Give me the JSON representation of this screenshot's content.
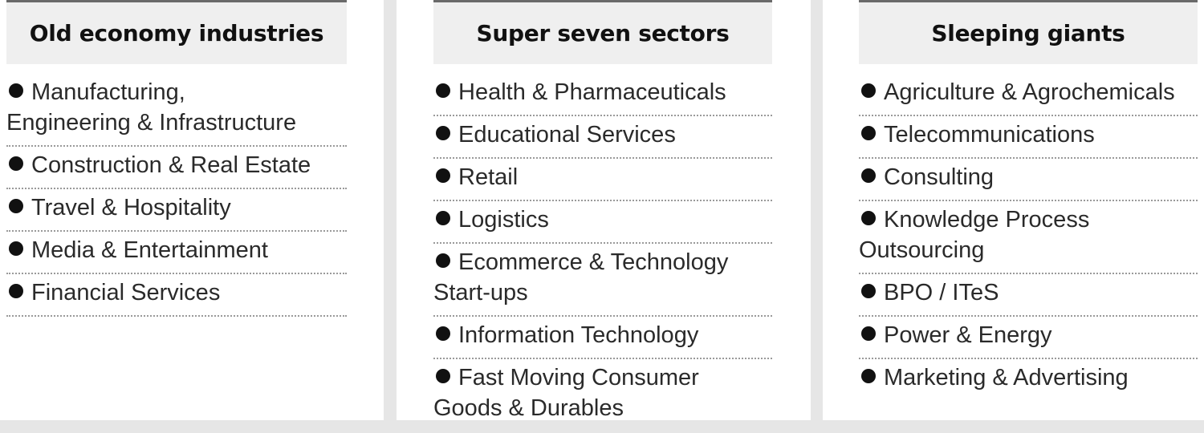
{
  "columns": [
    {
      "title": "Old economy industries",
      "items": [
        "Manufacturing,\nEngineering & Infrastructure",
        "Construction & Real Estate",
        "Travel & Hospitality",
        "Media & Entertainment",
        "Financial Services"
      ]
    },
    {
      "title": "Super seven sectors",
      "items": [
        "Health & Pharmaceuticals",
        "Educational Services",
        "Retail",
        "Logistics",
        "Ecommerce & Technology Start-ups",
        "Information Technology",
        "Fast Moving Consumer Goods & Durables"
      ]
    },
    {
      "title": "Sleeping giants",
      "items": [
        "Agriculture & Agrochemicals",
        "Telecommunications",
        "Consulting",
        "Knowledge Process Outsourcing",
        "BPO / ITeS",
        "Power & Energy",
        "Marketing & Advertising"
      ]
    }
  ]
}
